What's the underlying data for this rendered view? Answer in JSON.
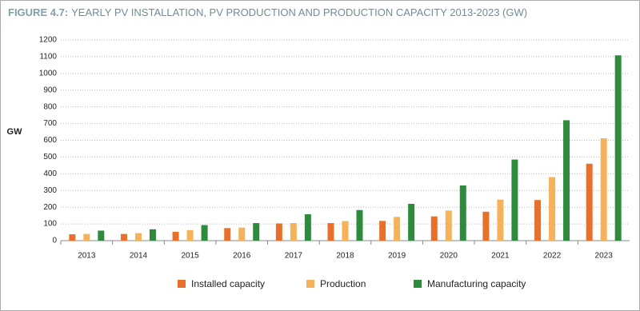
{
  "chart_data": {
    "type": "bar",
    "figure_label": "FIGURE 4.7:",
    "title": "YEARLY PV INSTALLATION, PV PRODUCTION AND PRODUCTION CAPACITY 2013-2023 (GW)",
    "y_label": "GW",
    "categories": [
      "2013",
      "2014",
      "2015",
      "2016",
      "2017",
      "2018",
      "2019",
      "2020",
      "2021",
      "2022",
      "2023"
    ],
    "series": [
      {
        "name": "Installed capacity",
        "color": "#e8702a",
        "values": [
          38,
          40,
          53,
          75,
          103,
          105,
          118,
          145,
          173,
          243,
          460
        ]
      },
      {
        "name": "Production",
        "color": "#f5b25b",
        "values": [
          40,
          45,
          63,
          78,
          105,
          117,
          142,
          180,
          245,
          380,
          612
        ]
      },
      {
        "name": "Manufacturing capacity",
        "color": "#2e8b3e",
        "values": [
          60,
          68,
          93,
          105,
          158,
          183,
          220,
          330,
          485,
          720,
          1108
        ]
      }
    ],
    "ylim": [
      0,
      1200
    ],
    "yticks": [
      0,
      100,
      200,
      300,
      400,
      500,
      600,
      700,
      800,
      900,
      1000,
      1100,
      1200
    ],
    "grid": true
  }
}
